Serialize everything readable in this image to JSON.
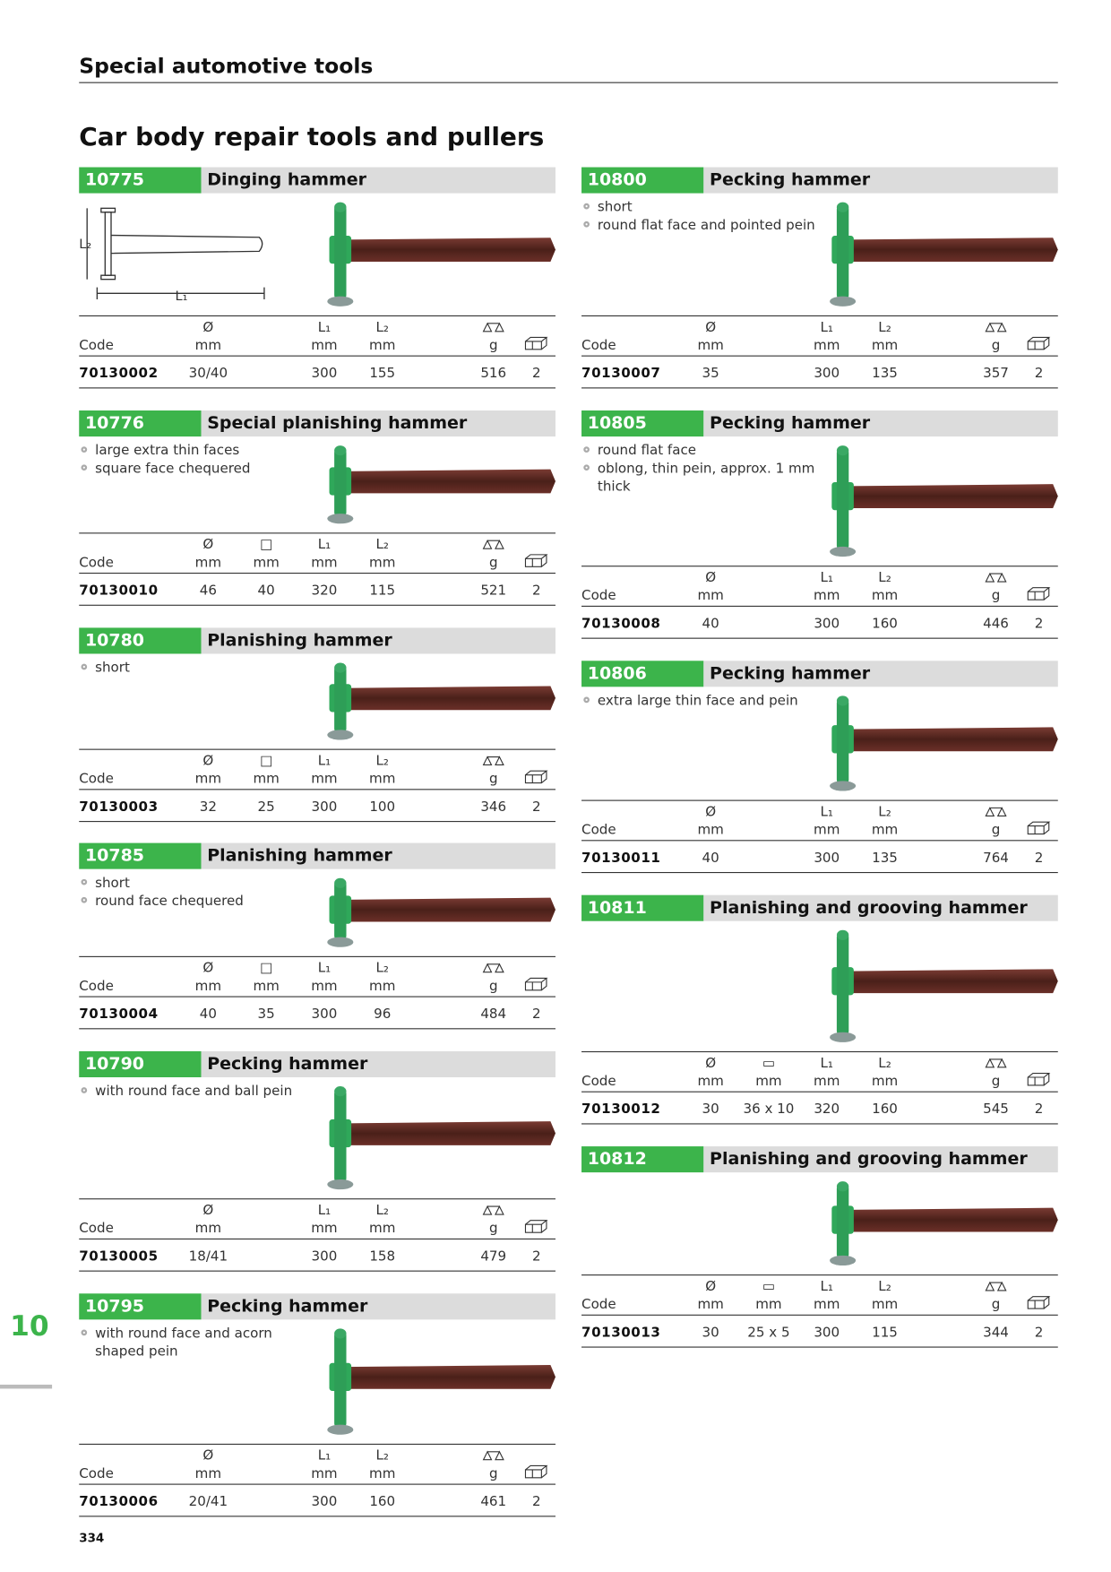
{
  "header": {
    "section": "Special automotive tools",
    "title": "Car body repair tools and pullers"
  },
  "footer": {
    "tab": "10",
    "page_number": "334"
  },
  "products": [
    {
      "number": "10775",
      "name": "Dinging hammer",
      "features": [],
      "diagram_labels": [
        "L₂",
        "L₁"
      ],
      "columns": [
        {
          "unit": "Code"
        },
        {
          "symbol": "Ø",
          "unit": "mm"
        },
        {
          "symbol": "L₁",
          "unit": "mm"
        },
        {
          "symbol": "L₂",
          "unit": "mm"
        },
        {
          "icon": "scale",
          "unit": "g"
        },
        {
          "icon": "box"
        }
      ],
      "row": [
        "70130002",
        "30/40",
        "300",
        "155",
        "516",
        "2"
      ]
    },
    {
      "number": "10776",
      "name": "Special planishing hammer",
      "features": [
        "large extra thin faces",
        "square face chequered"
      ],
      "columns": [
        {
          "unit": "Code"
        },
        {
          "symbol": "Ø",
          "unit": "mm"
        },
        {
          "symbol": "□",
          "unit": "mm"
        },
        {
          "symbol": "L₁",
          "unit": "mm"
        },
        {
          "symbol": "L₂",
          "unit": "mm"
        },
        {
          "icon": "scale",
          "unit": "g"
        },
        {
          "icon": "box"
        }
      ],
      "row": [
        "70130010",
        "46",
        "40",
        "320",
        "115",
        "521",
        "2"
      ]
    },
    {
      "number": "10780",
      "name": "Planishing hammer",
      "features": [
        "short"
      ],
      "columns": [
        {
          "unit": "Code"
        },
        {
          "symbol": "Ø",
          "unit": "mm"
        },
        {
          "symbol": "□",
          "unit": "mm"
        },
        {
          "symbol": "L₁",
          "unit": "mm"
        },
        {
          "symbol": "L₂",
          "unit": "mm"
        },
        {
          "icon": "scale",
          "unit": "g"
        },
        {
          "icon": "box"
        }
      ],
      "row": [
        "70130003",
        "32",
        "25",
        "300",
        "100",
        "346",
        "2"
      ]
    },
    {
      "number": "10785",
      "name": "Planishing hammer",
      "features": [
        "short",
        "round face chequered"
      ],
      "columns": [
        {
          "unit": "Code"
        },
        {
          "symbol": "Ø",
          "unit": "mm"
        },
        {
          "symbol": "□",
          "unit": "mm"
        },
        {
          "symbol": "L₁",
          "unit": "mm"
        },
        {
          "symbol": "L₂",
          "unit": "mm"
        },
        {
          "icon": "scale",
          "unit": "g"
        },
        {
          "icon": "box"
        }
      ],
      "row": [
        "70130004",
        "40",
        "35",
        "300",
        "96",
        "484",
        "2"
      ]
    },
    {
      "number": "10790",
      "name": "Pecking hammer",
      "features": [
        "with round face and ball pein"
      ],
      "columns": [
        {
          "unit": "Code"
        },
        {
          "symbol": "Ø",
          "unit": "mm"
        },
        {
          "symbol": "L₁",
          "unit": "mm"
        },
        {
          "symbol": "L₂",
          "unit": "mm"
        },
        {
          "icon": "scale",
          "unit": "g"
        },
        {
          "icon": "box"
        }
      ],
      "row": [
        "70130005",
        "18/41",
        "300",
        "158",
        "479",
        "2"
      ]
    },
    {
      "number": "10795",
      "name": "Pecking hammer",
      "features": [
        "with round face and acorn shaped pein"
      ],
      "columns": [
        {
          "unit": "Code"
        },
        {
          "symbol": "Ø",
          "unit": "mm"
        },
        {
          "symbol": "L₁",
          "unit": "mm"
        },
        {
          "symbol": "L₂",
          "unit": "mm"
        },
        {
          "icon": "scale",
          "unit": "g"
        },
        {
          "icon": "box"
        }
      ],
      "row": [
        "70130006",
        "20/41",
        "300",
        "160",
        "461",
        "2"
      ]
    },
    {
      "number": "10800",
      "name": "Pecking hammer",
      "features": [
        "short",
        "round flat face and pointed pein"
      ],
      "columns": [
        {
          "unit": "Code"
        },
        {
          "symbol": "Ø",
          "unit": "mm"
        },
        {
          "symbol": "L₁",
          "unit": "mm"
        },
        {
          "symbol": "L₂",
          "unit": "mm"
        },
        {
          "icon": "scale",
          "unit": "g"
        },
        {
          "icon": "box"
        }
      ],
      "row": [
        "70130007",
        "35",
        "300",
        "135",
        "357",
        "2"
      ]
    },
    {
      "number": "10805",
      "name": "Pecking hammer",
      "features": [
        "round flat face",
        "oblong, thin pein, approx. 1 mm thick"
      ],
      "columns": [
        {
          "unit": "Code"
        },
        {
          "symbol": "Ø",
          "unit": "mm"
        },
        {
          "symbol": "L₁",
          "unit": "mm"
        },
        {
          "symbol": "L₂",
          "unit": "mm"
        },
        {
          "icon": "scale",
          "unit": "g"
        },
        {
          "icon": "box"
        }
      ],
      "row": [
        "70130008",
        "40",
        "300",
        "160",
        "446",
        "2"
      ]
    },
    {
      "number": "10806",
      "name": "Pecking hammer",
      "features": [
        "extra large thin face and pein"
      ],
      "columns": [
        {
          "unit": "Code"
        },
        {
          "symbol": "Ø",
          "unit": "mm"
        },
        {
          "symbol": "L₁",
          "unit": "mm"
        },
        {
          "symbol": "L₂",
          "unit": "mm"
        },
        {
          "icon": "scale",
          "unit": "g"
        },
        {
          "icon": "box"
        }
      ],
      "row": [
        "70130011",
        "40",
        "300",
        "135",
        "764",
        "2"
      ]
    },
    {
      "number": "10811",
      "name": "Planishing and grooving hammer",
      "features": [],
      "columns": [
        {
          "unit": "Code"
        },
        {
          "symbol": "Ø",
          "unit": "mm"
        },
        {
          "symbol": "▭",
          "unit": "mm"
        },
        {
          "symbol": "L₁",
          "unit": "mm"
        },
        {
          "symbol": "L₂",
          "unit": "mm"
        },
        {
          "icon": "scale",
          "unit": "g"
        },
        {
          "icon": "box"
        }
      ],
      "row": [
        "70130012",
        "30",
        "36 x 10",
        "320",
        "160",
        "545",
        "2"
      ]
    },
    {
      "number": "10812",
      "name": "Planishing and grooving hammer",
      "features": [],
      "columns": [
        {
          "unit": "Code"
        },
        {
          "symbol": "Ø",
          "unit": "mm"
        },
        {
          "symbol": "▭",
          "unit": "mm"
        },
        {
          "symbol": "L₁",
          "unit": "mm"
        },
        {
          "symbol": "L₂",
          "unit": "mm"
        },
        {
          "icon": "scale",
          "unit": "g"
        },
        {
          "icon": "box"
        }
      ],
      "row": [
        "70130013",
        "30",
        "25 x 5",
        "300",
        "115",
        "344",
        "2"
      ]
    }
  ]
}
